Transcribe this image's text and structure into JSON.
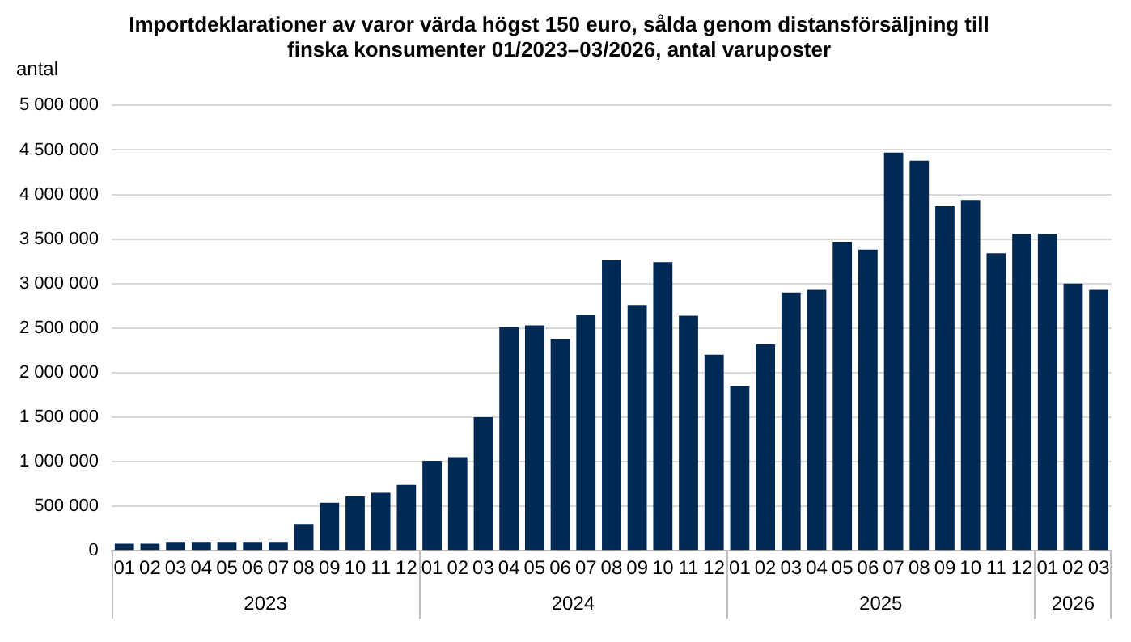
{
  "chart_data": {
    "type": "bar",
    "title": "Importdeklarationer av varor värda högst 150 euro, sålda genom distansförsäljning till finska konsumenter 01/2023–03/2026, antal varuposter",
    "ylabel": "antal",
    "categories": [
      "01",
      "02",
      "03",
      "04",
      "05",
      "06",
      "07",
      "08",
      "09",
      "10",
      "11",
      "12",
      "01",
      "02",
      "03",
      "04",
      "05",
      "06",
      "07",
      "08",
      "09",
      "10",
      "11",
      "12",
      "01",
      "02",
      "03",
      "04",
      "05",
      "06",
      "07",
      "08",
      "09",
      "10",
      "11",
      "12",
      "01",
      "02",
      "03"
    ],
    "values": [
      80000,
      80000,
      100000,
      100000,
      100000,
      100000,
      100000,
      300000,
      540000,
      610000,
      650000,
      740000,
      1010000,
      1050000,
      1500000,
      2510000,
      2530000,
      2380000,
      2650000,
      3260000,
      2760000,
      3240000,
      2640000,
      2200000,
      1850000,
      2320000,
      2900000,
      2930000,
      3470000,
      3380000,
      4470000,
      4380000,
      3870000,
      3940000,
      3340000,
      3560000,
      3560000,
      3000000,
      2930000
    ],
    "color": "#002953",
    "ylim": [
      0,
      5000000
    ],
    "yticks": [
      0,
      {
        "value": 500000,
        "label": "500 000"
      },
      {
        "value": 1000000,
        "label": "1 000 000"
      },
      {
        "value": 1500000,
        "label": "1 500 000"
      },
      {
        "value": 2000000,
        "label": "2 000 000"
      },
      {
        "value": 2500000,
        "label": "2 500 000"
      },
      {
        "value": 3000000,
        "label": "3 000 000"
      },
      {
        "value": 3500000,
        "label": "3 500 000"
      },
      {
        "value": 4000000,
        "label": "4 000 000"
      },
      {
        "value": 4500000,
        "label": "4 500 000"
      },
      {
        "value": 5000000,
        "label": "5 000 000"
      }
    ],
    "grid": "y",
    "legend": false,
    "annotations": [
      "2023",
      "2024",
      "2025",
      "2026"
    ]
  }
}
